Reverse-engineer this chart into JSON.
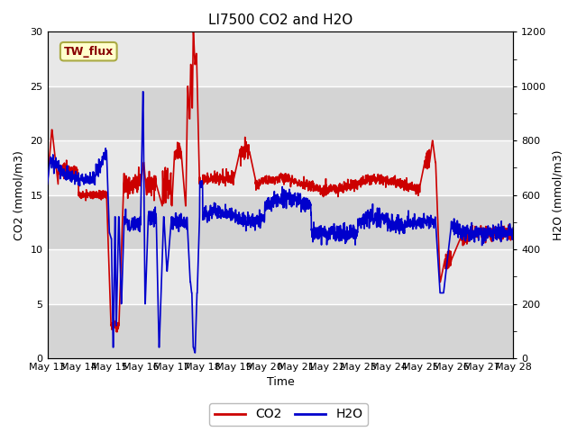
{
  "title": "LI7500 CO2 and H2O",
  "xlabel": "Time",
  "ylabel_left": "CO2 (mmol/m3)",
  "ylabel_right": "H2O (mmol/m3)",
  "annotation": "TW_flux",
  "xlim_days": [
    13,
    28
  ],
  "ylim_left": [
    0,
    30
  ],
  "ylim_right": [
    0,
    1200
  ],
  "h2o_scale": 40.0,
  "xtick_labels": [
    "May 13",
    "May 14",
    "May 15",
    "May 16",
    "May 17",
    "May 18",
    "May 19",
    "May 20",
    "May 21",
    "May 22",
    "May 23",
    "May 24",
    "May 25",
    "May 26",
    "May 27",
    "May 28"
  ],
  "fig_bg_color": "#ffffff",
  "plot_bg_color": "#e8e8e8",
  "band_light": "#e8e8e8",
  "band_dark": "#d4d4d4",
  "co2_color": "#cc0000",
  "h2o_color": "#0000cc",
  "legend_co2": "CO2",
  "legend_h2o": "H2O",
  "title_fontsize": 11,
  "axis_fontsize": 9,
  "tick_fontsize": 8,
  "annot_fontsize": 9,
  "linewidth": 1.2
}
